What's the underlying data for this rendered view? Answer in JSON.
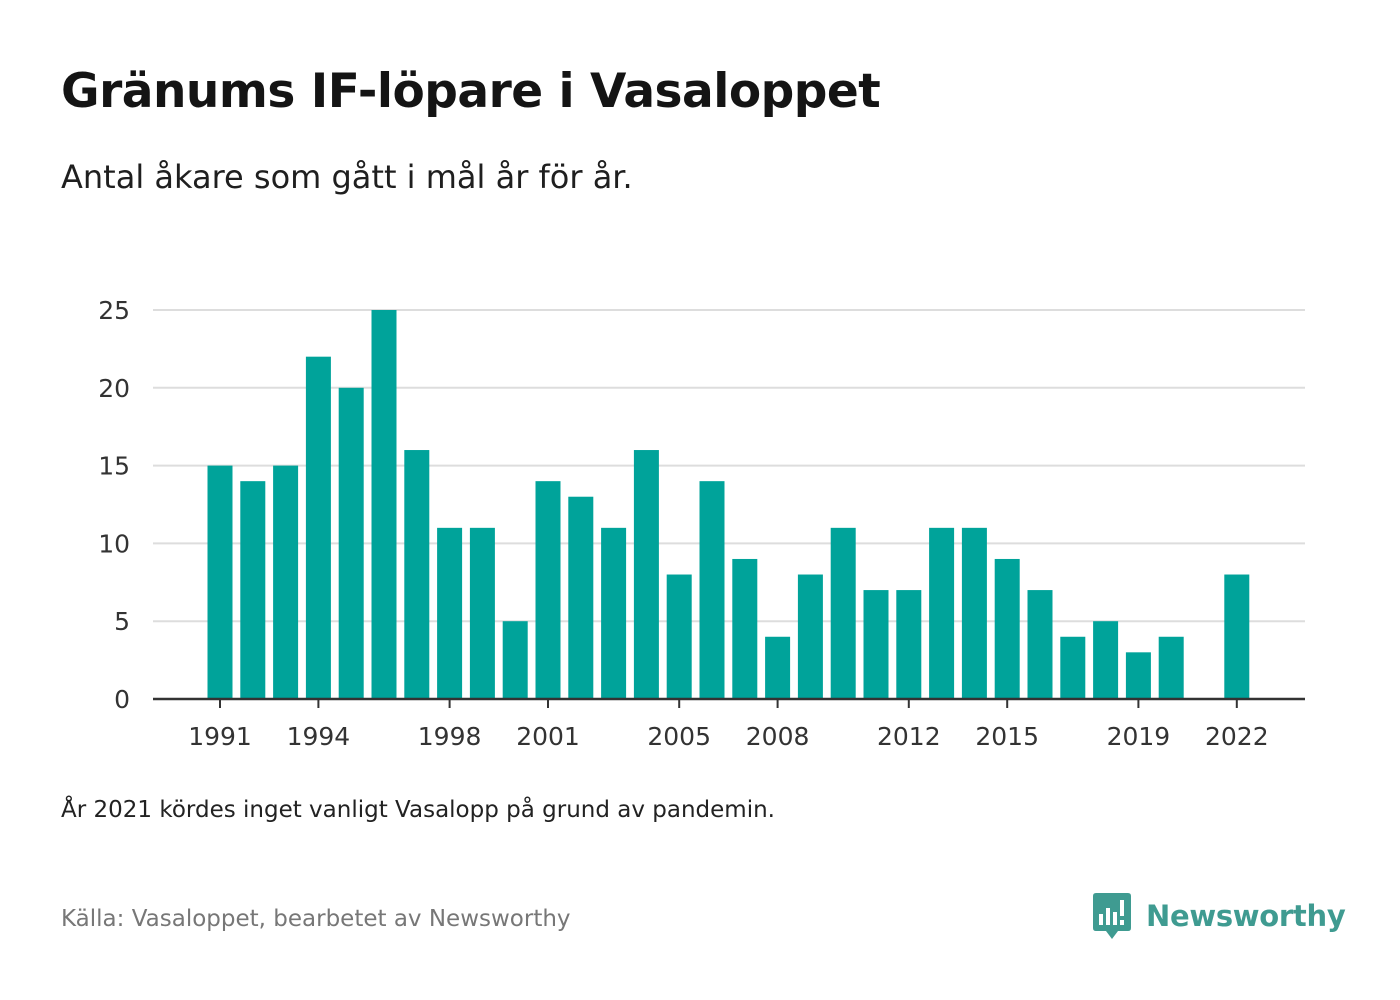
{
  "title": "Gränums IF-löpare i Vasaloppet",
  "subtitle": "Antal åkare som gått i mål år för år.",
  "note": "År 2021 kördes inget vanligt Vasalopp på grund av pandemin.",
  "source": "Källa: Vasaloppet, bearbetet av Newsworthy",
  "brand": "Newsworthy",
  "colors": {
    "bar": "#00a39a",
    "grid": "#dddddd",
    "axis": "#333333",
    "brand": "#3f9b91"
  },
  "chart_data": {
    "type": "bar",
    "categories": [
      "1991",
      "1992",
      "1993",
      "1994",
      "1995",
      "1996",
      "1997",
      "1998",
      "1999",
      "2000",
      "2001",
      "2002",
      "2003",
      "2004",
      "2005",
      "2006",
      "2007",
      "2008",
      "2009",
      "2010",
      "2011",
      "2012",
      "2013",
      "2014",
      "2015",
      "2016",
      "2017",
      "2018",
      "2019",
      "2020",
      "2021",
      "2022"
    ],
    "values": [
      15,
      14,
      15,
      22,
      20,
      25,
      16,
      11,
      11,
      5,
      14,
      13,
      11,
      16,
      8,
      14,
      9,
      4,
      8,
      11,
      7,
      7,
      11,
      11,
      9,
      7,
      4,
      5,
      3,
      4,
      null,
      8
    ],
    "x_tick_labels": [
      "1991",
      "1994",
      "1998",
      "2001",
      "2005",
      "2008",
      "2012",
      "2015",
      "2019",
      "2022"
    ],
    "y_ticks": [
      0,
      5,
      10,
      15,
      20,
      25
    ],
    "ylim": [
      0,
      25
    ],
    "grid": true,
    "legend": "none"
  }
}
